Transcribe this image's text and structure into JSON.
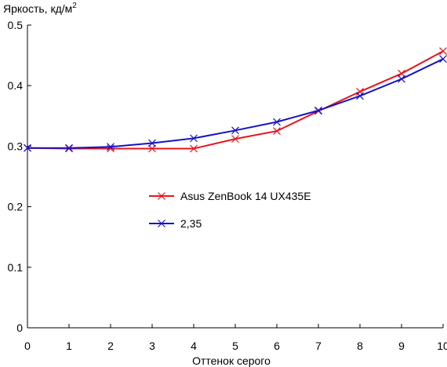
{
  "chart_data": {
    "type": "line",
    "title": "",
    "ylabel": "Яркость, кд/м",
    "ylabel_sup": "2",
    "xlabel": "Оттенок серого",
    "xlim": [
      0,
      10
    ],
    "ylim": [
      0,
      0.5
    ],
    "x_ticks": [
      "0",
      "1",
      "2",
      "3",
      "4",
      "5",
      "6",
      "7",
      "8",
      "9",
      "10"
    ],
    "y_ticks": [
      "0",
      "0.1",
      "0.2",
      "0.3",
      "0.4",
      "0.5"
    ],
    "grid": false,
    "legend_position": "center",
    "x": [
      0,
      1,
      2,
      3,
      4,
      5,
      6,
      7,
      8,
      9,
      10
    ],
    "series": [
      {
        "name": "Asus ZenBook 14 UX435E",
        "color": "#e8141e",
        "marker": "x",
        "values": [
          0.297,
          0.296,
          0.296,
          0.296,
          0.296,
          0.312,
          0.325,
          0.358,
          0.39,
          0.42,
          0.457
        ]
      },
      {
        "name": "2,35",
        "color": "#1414c8",
        "marker": "x",
        "values": [
          0.297,
          0.297,
          0.299,
          0.305,
          0.313,
          0.326,
          0.34,
          0.359,
          0.383,
          0.411,
          0.444
        ]
      }
    ]
  }
}
